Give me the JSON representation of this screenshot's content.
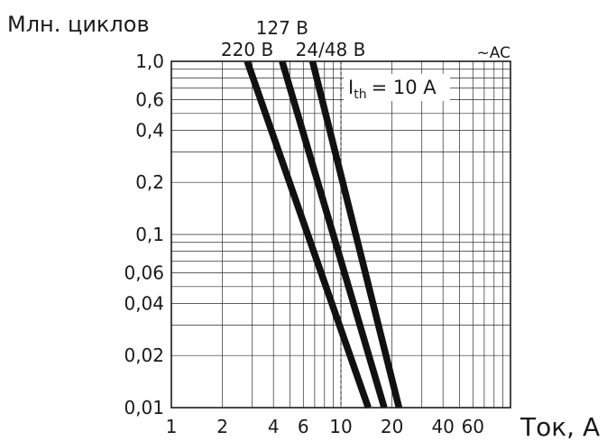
{
  "chart_data": {
    "type": "line",
    "title": "",
    "ylabel": "Млн. циклов",
    "xlabel": "Ток, А",
    "x_scale": "log",
    "y_scale": "log",
    "xlim": [
      1,
      100
    ],
    "ylim": [
      0.01,
      1.0
    ],
    "x_ticks": [
      {
        "value": 1,
        "label": "1"
      },
      {
        "value": 2,
        "label": "2"
      },
      {
        "value": 4,
        "label": "4"
      },
      {
        "value": 6,
        "label": "6"
      },
      {
        "value": 10,
        "label": "10"
      },
      {
        "value": 20,
        "label": "20"
      },
      {
        "value": 40,
        "label": "40"
      },
      {
        "value": 60,
        "label": "60"
      }
    ],
    "y_ticks": [
      {
        "value": 1.0,
        "label": "1,0"
      },
      {
        "value": 0.6,
        "label": "0,6"
      },
      {
        "value": 0.4,
        "label": "0,4"
      },
      {
        "value": 0.2,
        "label": "0,2"
      },
      {
        "value": 0.1,
        "label": "0,1"
      },
      {
        "value": 0.06,
        "label": "0,06"
      },
      {
        "value": 0.04,
        "label": "0,04"
      },
      {
        "value": 0.02,
        "label": "0,02"
      },
      {
        "value": 0.01,
        "label": "0,01"
      }
    ],
    "grid": true,
    "series": [
      {
        "name": "220 В",
        "x": [
          2.8,
          14.5
        ],
        "y": [
          1.0,
          0.01
        ]
      },
      {
        "name": "127 В",
        "x": [
          4.5,
          18.0
        ],
        "y": [
          1.0,
          0.01
        ]
      },
      {
        "name": "24/48 В",
        "x": [
          6.8,
          22.0
        ],
        "y": [
          1.0,
          0.01
        ]
      }
    ],
    "reference_line": {
      "x": 10
    },
    "annotations": {
      "ith_main": "I",
      "ith_sub": "th",
      "ith_value": "= 10 А",
      "current_type": "~AC"
    }
  }
}
